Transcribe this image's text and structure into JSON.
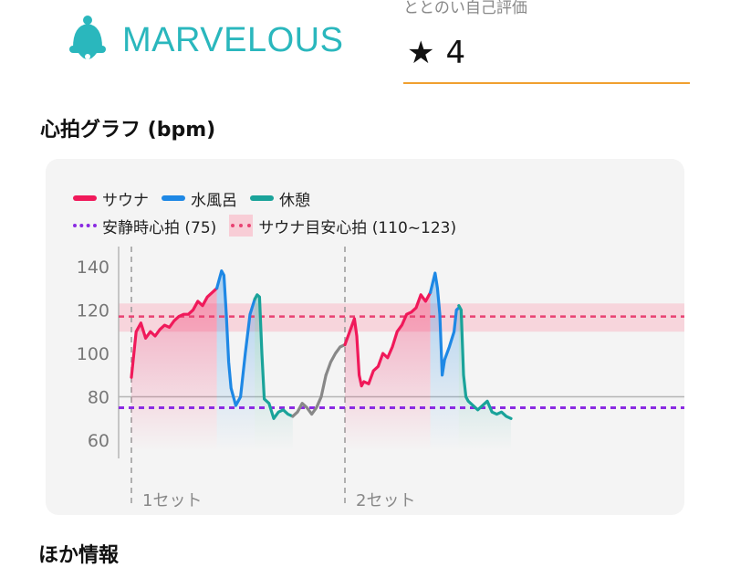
{
  "header": {
    "brand_name": "MARVELOUS",
    "rating_label": "ととのい自己評価",
    "rating_value": "4"
  },
  "section": {
    "title": "心拍グラフ (bpm)"
  },
  "colors": {
    "sauna": "#f0195a",
    "bath": "#1e88e5",
    "rest": "#1aa39a",
    "resting": "#8a2be2",
    "target": "#e84272",
    "brand": "#2ab7bd"
  },
  "legend": {
    "sauna": "サウナ",
    "bath": "水風呂",
    "rest": "休憩",
    "resting_hr": "安静時心拍 (75)",
    "target_hr": "サウナ目安心拍 (110~123)"
  },
  "chart_data": {
    "type": "line",
    "y_ticks": [
      140,
      120,
      100,
      80,
      60
    ],
    "ylim": [
      55,
      145
    ],
    "resting_hr": 75,
    "target_band": [
      110,
      123
    ],
    "target_line": 117,
    "sets": [
      {
        "label": "1セット"
      },
      {
        "label": "2セット"
      }
    ],
    "series": [
      {
        "name": "サウナ",
        "phase": "sauna",
        "color": "#f0195a",
        "x": [
          0,
          2,
          4,
          6,
          8,
          10,
          12,
          14,
          16,
          18,
          20,
          22,
          24,
          26,
          28,
          30,
          32,
          34,
          36
        ],
        "y": [
          89,
          110,
          114,
          107,
          110,
          108,
          111,
          113,
          112,
          115,
          117,
          118,
          118,
          120,
          124,
          122,
          126,
          128,
          130
        ]
      },
      {
        "name": "水風呂",
        "phase": "bath",
        "color": "#1e88e5",
        "x": [
          36,
          38,
          39,
          40,
          41,
          42,
          44,
          46,
          48,
          50,
          52
        ],
        "y": [
          130,
          138,
          136,
          118,
          96,
          84,
          76,
          80,
          100,
          118,
          125
        ]
      },
      {
        "name": "休憩",
        "phase": "rest",
        "color": "#1aa39a",
        "x": [
          52,
          53,
          54,
          55,
          56,
          58,
          60,
          62,
          64,
          66,
          68
        ],
        "y": [
          125,
          127,
          126,
          100,
          79,
          77,
          70,
          73,
          74,
          72,
          71
        ]
      },
      {
        "name": "",
        "phase": "other",
        "color": "#888888",
        "x": [
          68,
          70,
          72,
          74,
          76,
          78,
          80,
          82
        ],
        "y": [
          71,
          73,
          77,
          75,
          72,
          75,
          80,
          90
        ]
      },
      {
        "name": "",
        "phase": "other",
        "color": "#888888",
        "x": [
          82,
          84,
          86,
          88,
          90
        ],
        "y": [
          90,
          96,
          100,
          103,
          104
        ]
      },
      {
        "name": "サウナ",
        "phase": "sauna",
        "color": "#f0195a",
        "x": [
          90,
          92,
          94,
          95,
          96,
          97,
          98,
          100,
          102,
          104,
          106,
          108,
          110,
          112,
          114,
          116,
          118,
          120,
          122,
          124,
          126
        ],
        "y": [
          104,
          110,
          116,
          108,
          90,
          85,
          87,
          86,
          92,
          94,
          100,
          98,
          103,
          110,
          113,
          118,
          119,
          121,
          127,
          124,
          128
        ]
      },
      {
        "name": "水風呂",
        "phase": "bath",
        "color": "#1e88e5",
        "x": [
          126,
          128,
          129,
          130,
          131,
          132,
          134,
          136,
          137,
          138
        ],
        "y": [
          128,
          137,
          130,
          118,
          90,
          97,
          103,
          110,
          120,
          121
        ]
      },
      {
        "name": "休憩",
        "phase": "rest",
        "color": "#1aa39a",
        "x": [
          138,
          139,
          140,
          141,
          142,
          144,
          146,
          148,
          150,
          152,
          154,
          156,
          158,
          160
        ],
        "y": [
          122,
          120,
          90,
          80,
          78,
          76,
          74,
          76,
          78,
          73,
          72,
          73,
          71,
          70
        ]
      }
    ]
  },
  "footer": {
    "next_title": "ほか情報"
  }
}
